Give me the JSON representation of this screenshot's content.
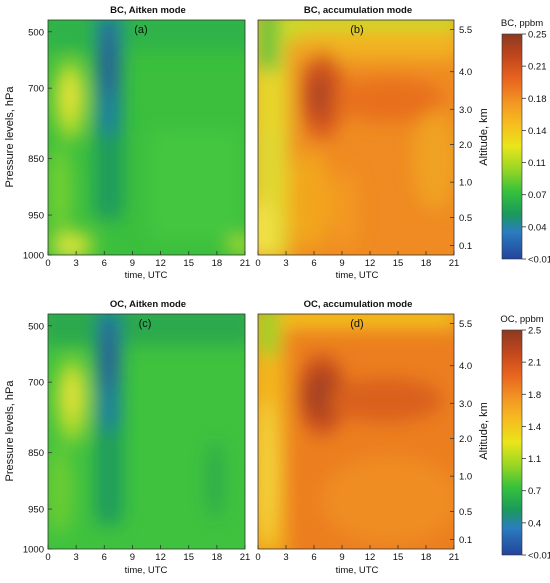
{
  "chart_data": [
    {
      "type": "heatmap",
      "panel": "a",
      "title": "BC, Aitken mode",
      "tag": "(a)",
      "xlabel": "time, UTC",
      "ylabel": "Pressure levels, hPa",
      "xticks": [
        "0",
        "3",
        "6",
        "9",
        "12",
        "15",
        "18",
        "21"
      ],
      "yticks": [
        "500",
        "700",
        "850",
        "950",
        "1000"
      ],
      "xlim": [
        0,
        21
      ]
    },
    {
      "type": "heatmap",
      "panel": "b",
      "title": "BC, accumulation mode",
      "tag": "(b)",
      "xlabel": "time, UTC",
      "ylabel2": "Altitude, km",
      "xticks": [
        "0",
        "3",
        "6",
        "9",
        "12",
        "15",
        "18",
        "21"
      ],
      "y2ticks": [
        "5.5",
        "4.0",
        "3.0",
        "2.0",
        "1.0",
        "0.5",
        "0.1"
      ],
      "colorbar": {
        "label": "BC, ppbm",
        "ticks": [
          "0.25",
          "0.21",
          "0.18",
          "0.14",
          "0.11",
          "0.07",
          "0.04",
          "<0.01"
        ]
      }
    },
    {
      "type": "heatmap",
      "panel": "c",
      "title": "OC, Aitken mode",
      "tag": "(c)",
      "xlabel": "time, UTC",
      "ylabel": "Pressure levels, hPa",
      "xticks": [
        "0",
        "3",
        "6",
        "9",
        "12",
        "15",
        "18",
        "21"
      ],
      "yticks": [
        "500",
        "700",
        "850",
        "950",
        "1000"
      ]
    },
    {
      "type": "heatmap",
      "panel": "d",
      "title": "OC, accumulation mode",
      "tag": "(d)",
      "xlabel": "time, UTC",
      "ylabel2": "Altitude, km",
      "xticks": [
        "0",
        "3",
        "6",
        "9",
        "12",
        "15",
        "18",
        "21"
      ],
      "y2ticks": [
        "5.5",
        "4.0",
        "3.0",
        "2.0",
        "1.0",
        "0.5",
        "0.1"
      ],
      "colorbar": {
        "label": "OC, ppbm",
        "ticks": [
          "2.5",
          "2.1",
          "1.8",
          "1.4",
          "1.1",
          "0.7",
          "0.4",
          "<0.01"
        ]
      }
    }
  ],
  "colormap": [
    "#2a3a9a",
    "#2c7bbf",
    "#1fa85a",
    "#34c23a",
    "#8bd520",
    "#e6e418",
    "#f5b51d",
    "#f07d1f",
    "#e2571e",
    "#b8401a",
    "#8a3520"
  ]
}
